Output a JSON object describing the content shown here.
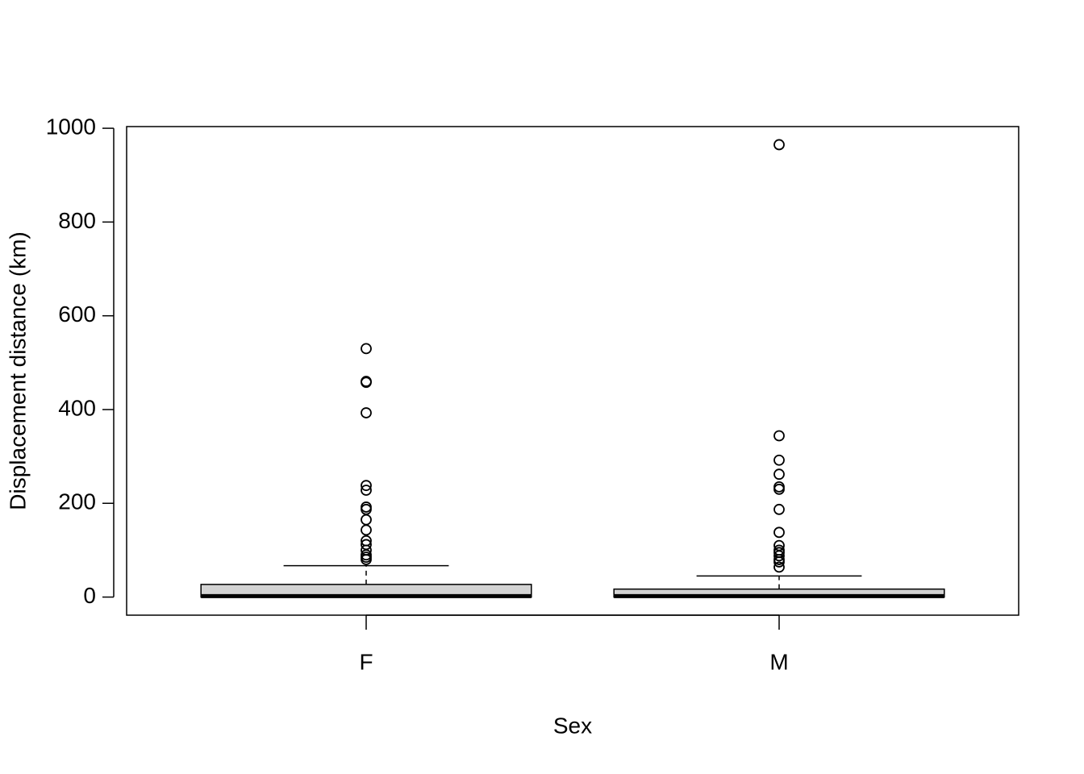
{
  "chart_data": {
    "type": "box",
    "xlabel": "Sex",
    "ylabel": "Displacement distance (km)",
    "categories": [
      "F",
      "M"
    ],
    "boxes": [
      {
        "min": 0,
        "q1": 0,
        "median": 2,
        "q3": 27,
        "max": 67,
        "outliers": [
          530,
          460,
          458,
          393,
          238,
          228,
          192,
          187,
          165,
          143,
          120,
          112,
          100,
          90,
          85,
          80
        ]
      },
      {
        "min": 0,
        "q1": 0,
        "median": 2,
        "q3": 17,
        "max": 45,
        "outliers": [
          965,
          344,
          292,
          262,
          235,
          230,
          187,
          138,
          110,
          100,
          95,
          88,
          80,
          75,
          64
        ]
      }
    ],
    "color": "#d3d3d3",
    "ylim": [
      -38.6,
      1003.6
    ],
    "yticks": [
      0,
      200,
      400,
      600,
      800,
      1000
    ]
  }
}
